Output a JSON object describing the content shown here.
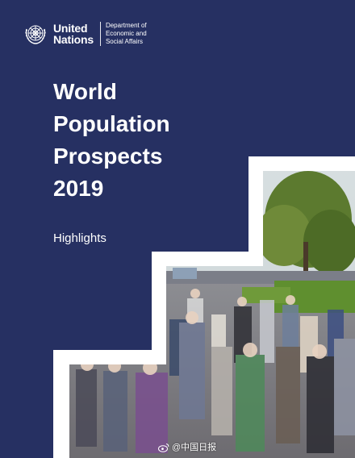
{
  "header": {
    "org_line1": "United",
    "org_line2": "Nations",
    "department_line1": "Department of",
    "department_line2": "Economic and",
    "department_line3": "Social Affairs",
    "emblem_icon": "un-emblem-icon"
  },
  "cover": {
    "title_line1": "World",
    "title_line2": "Population",
    "title_line3": "Prospects",
    "title_line4": "2019",
    "subtitle": "Highlights"
  },
  "watermark": {
    "text": "@中国日报",
    "icon": "weibo-icon"
  },
  "colors": {
    "cover_background": "#263062",
    "stair_frame": "#ffffff",
    "text": "#ffffff"
  }
}
